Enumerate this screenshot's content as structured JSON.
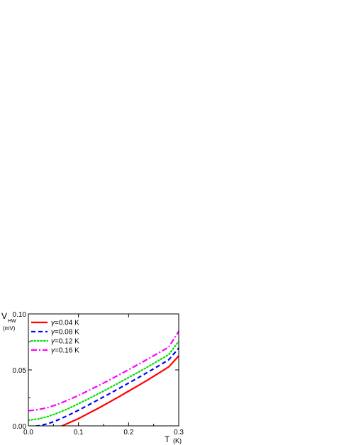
{
  "chart_data": {
    "type": "line",
    "xlabel_main": "T",
    "xlabel_unit": "(K)",
    "ylabel_main": "V",
    "ylabel_sub": "HW",
    "ylabel_unit": "(mV)",
    "xlim": [
      0.0,
      0.3
    ],
    "ylim": [
      0.0,
      0.1
    ],
    "x_ticks": [
      "0.0",
      "0.1",
      "0.2",
      "0.3"
    ],
    "y_ticks": [
      "0.00",
      "0.05",
      "0.10"
    ],
    "x_tick_values": [
      0.0,
      0.1,
      0.2,
      0.3
    ],
    "y_tick_values": [
      0.0,
      0.05,
      0.1
    ],
    "legend_position": "top-left",
    "x": [
      0.0,
      0.02,
      0.04,
      0.06,
      0.08,
      0.1,
      0.12,
      0.14,
      0.16,
      0.18,
      0.2,
      0.22,
      0.24,
      0.26,
      0.28,
      0.3
    ],
    "series": [
      {
        "name": "γ=0.04 K",
        "symbol": "γ",
        "label_rest": "=0.04 K",
        "color": "#ff0000",
        "dash": "solid",
        "values": [
          -0.011,
          -0.0085,
          -0.0055,
          -0.0015,
          0.0025,
          0.0065,
          0.0112,
          0.0158,
          0.0208,
          0.0258,
          0.031,
          0.0362,
          0.0415,
          0.047,
          0.0527,
          0.0625
        ]
      },
      {
        "name": "γ=0.08 K",
        "symbol": "γ",
        "label_rest": "=0.08 K",
        "color": "#0000ff",
        "dash": "dash",
        "values": [
          -0.001,
          0.0,
          0.002,
          0.0055,
          0.0095,
          0.014,
          0.0187,
          0.0235,
          0.0283,
          0.0332,
          0.0382,
          0.0432,
          0.0484,
          0.0536,
          0.059,
          0.0695
        ]
      },
      {
        "name": "γ=0.12 K",
        "symbol": "γ",
        "label_rest": "=0.12 K",
        "color": "#00e000",
        "dash": "dot",
        "values": [
          0.005,
          0.0062,
          0.0085,
          0.0118,
          0.0155,
          0.0198,
          0.0242,
          0.0288,
          0.0335,
          0.0383,
          0.0432,
          0.0481,
          0.0532,
          0.0584,
          0.0636,
          0.0755
        ]
      },
      {
        "name": "γ=0.16 K",
        "symbol": "γ",
        "label_rest": "=0.16 K",
        "color": "#ff00ff",
        "dash": "dashdot",
        "values": [
          0.0135,
          0.0145,
          0.0165,
          0.0195,
          0.0232,
          0.0272,
          0.0315,
          0.036,
          0.0406,
          0.0454,
          0.0502,
          0.0551,
          0.0601,
          0.0652,
          0.0703,
          0.0845
        ]
      }
    ]
  }
}
